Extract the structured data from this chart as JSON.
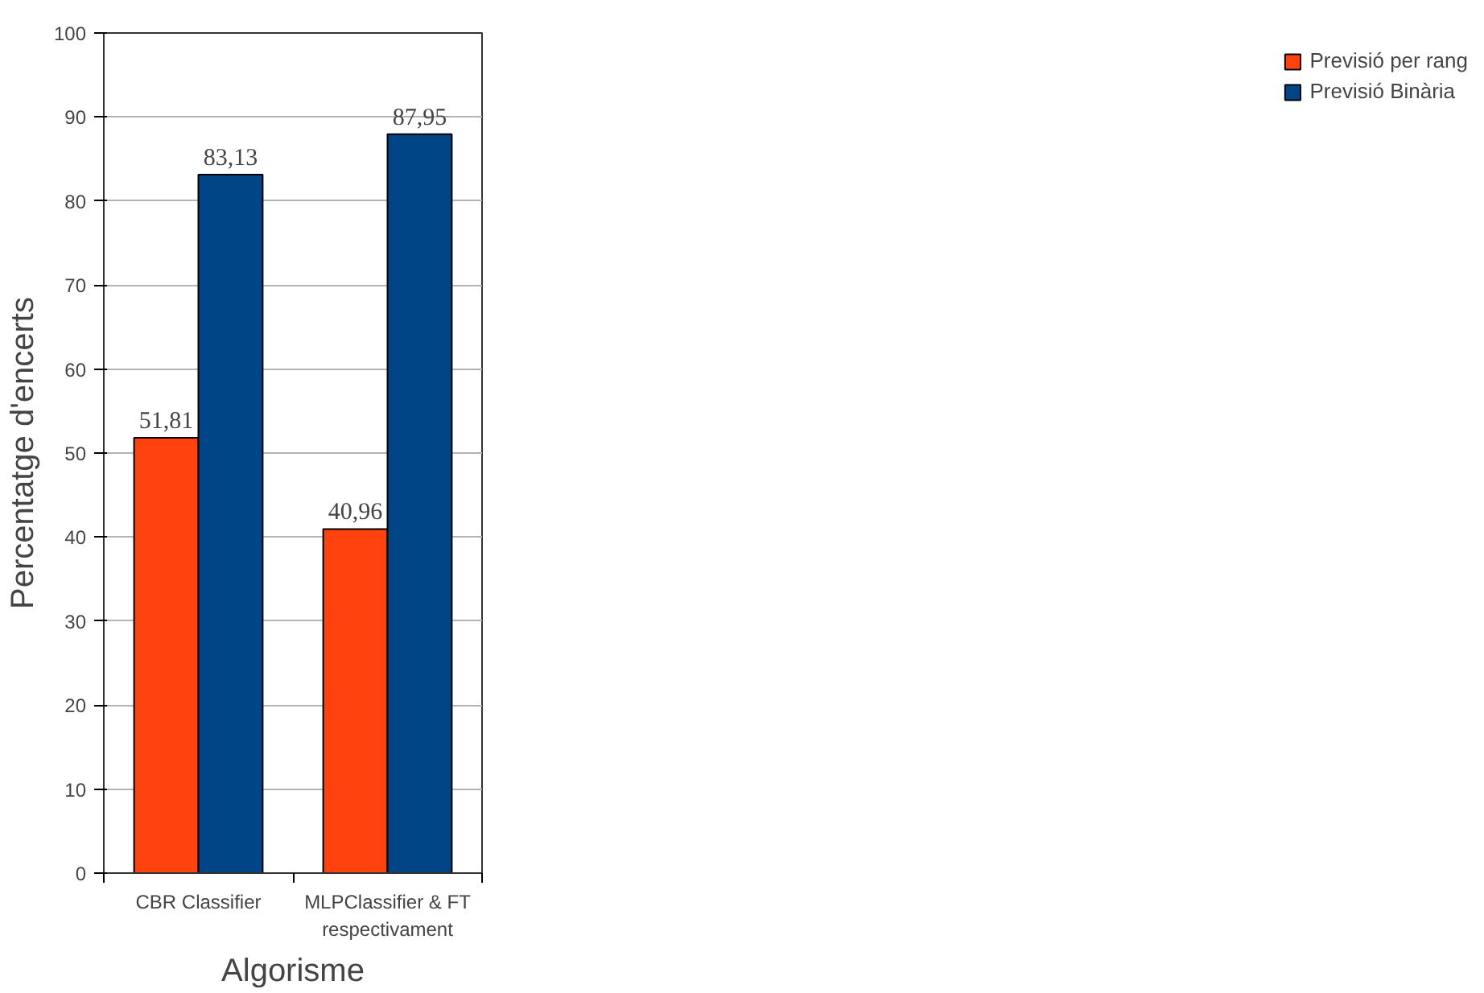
{
  "chart_data": {
    "type": "bar",
    "xlabel": "Algorisme",
    "ylabel": "Percentatge d'encerts",
    "categories": [
      "CBR Classifier",
      "MLPClassifier & FT respectivament"
    ],
    "series": [
      {
        "name": "Previsió per rang",
        "color": "#ff420e",
        "values": [
          51.81,
          40.96
        ],
        "value_labels": [
          "51,81",
          "40,96"
        ]
      },
      {
        "name": "Previsió Binària",
        "color": "#004586",
        "values": [
          83.13,
          87.95
        ],
        "value_labels": [
          "83,13",
          "87,95"
        ]
      }
    ],
    "ylim": [
      0,
      100
    ],
    "yticks": [
      0,
      10,
      20,
      30,
      40,
      50,
      60,
      70,
      80,
      90,
      100
    ],
    "grid": "y",
    "legend": "right"
  }
}
